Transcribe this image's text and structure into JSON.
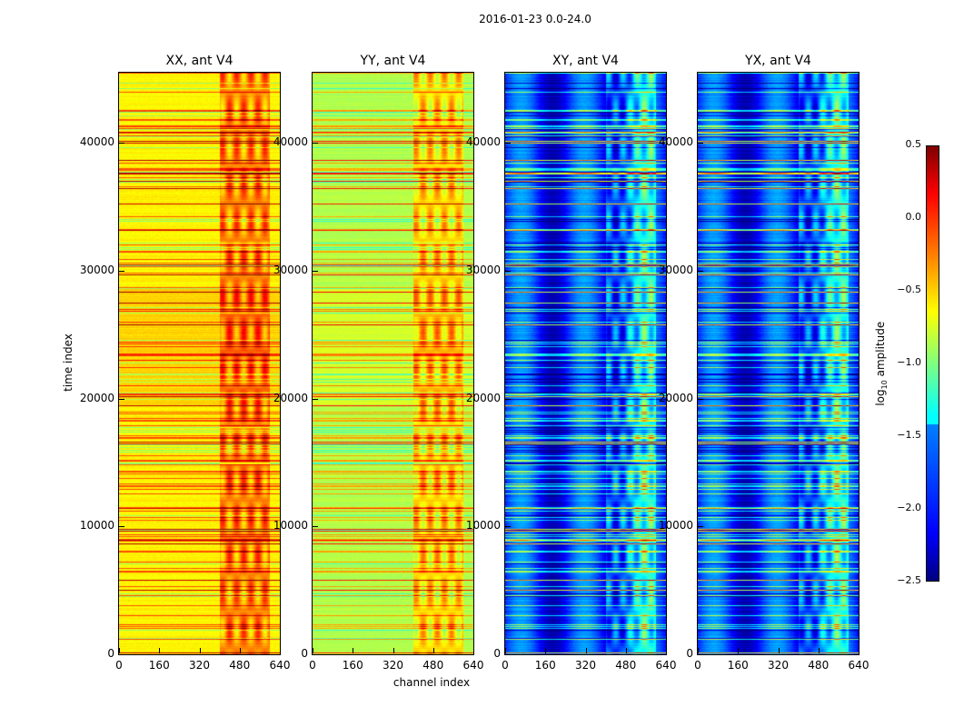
{
  "chart_data": {
    "type": "heatmap",
    "title": "2016-01-23 0.0-24.0",
    "xlabel": "channel index",
    "ylabel": "time index",
    "xlim": [
      0,
      640
    ],
    "ylim": [
      0,
      45500
    ],
    "xticks": [
      0,
      160,
      320,
      480,
      640
    ],
    "yticks": [
      0,
      10000,
      20000,
      30000,
      40000
    ],
    "colormap": "jet",
    "colorbar": {
      "label": "log10 amplitude",
      "label_base": "log",
      "label_sub": "10",
      "label_rest": " amplitude",
      "range": [
        -2.5,
        0.5
      ],
      "ticks": [
        "0.5",
        "0.0",
        "−0.5",
        "−1.0",
        "−1.5",
        "−2.0",
        "−2.5"
      ],
      "tick_values": [
        0.5,
        0,
        -0.5,
        -1,
        -1.5,
        -2,
        -2.5
      ]
    },
    "panels": [
      {
        "title": "XX, ant V4",
        "typical_level": -0.6,
        "rfi_channels": [
          400,
          600
        ],
        "rfi_level": 0.05
      },
      {
        "title": "YY, ant V4",
        "typical_level": -0.85,
        "rfi_channels": [
          400,
          600
        ],
        "rfi_level": -0.2
      },
      {
        "title": "XY, ant V4",
        "typical_level": -2.0,
        "rfi_channels": [
          400,
          600
        ],
        "rfi_level": -1.2
      },
      {
        "title": "YX, ant V4",
        "typical_level": -2.0,
        "rfi_channels": [
          400,
          600
        ],
        "rfi_level": -1.2
      }
    ]
  }
}
